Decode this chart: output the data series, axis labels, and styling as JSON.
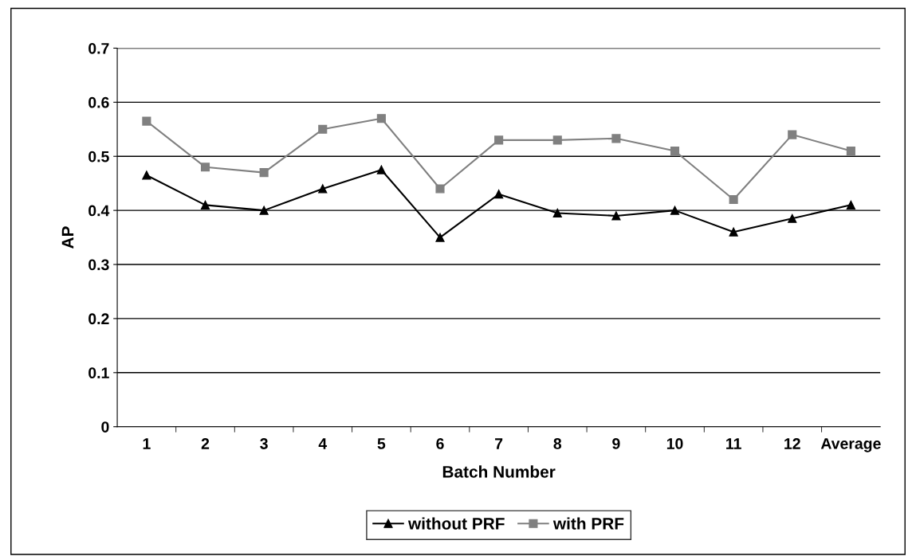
{
  "chart_data": {
    "type": "line",
    "xlabel": "Batch Number",
    "ylabel": "AP",
    "categories": [
      "1",
      "2",
      "3",
      "4",
      "5",
      "6",
      "7",
      "8",
      "9",
      "10",
      "11",
      "12",
      "Average"
    ],
    "series": [
      {
        "name": "without PRF",
        "color": "#000000",
        "marker": "triangle",
        "values": [
          0.465,
          0.41,
          0.4,
          0.44,
          0.475,
          0.35,
          0.43,
          0.395,
          0.39,
          0.4,
          0.36,
          0.385,
          0.41
        ]
      },
      {
        "name": "with PRF",
        "color": "#808080",
        "marker": "square",
        "values": [
          0.565,
          0.48,
          0.47,
          0.55,
          0.57,
          0.44,
          0.53,
          0.53,
          0.533,
          0.51,
          0.42,
          0.54,
          0.51
        ]
      }
    ],
    "ylim": [
      0,
      0.7
    ],
    "yticks": [
      0,
      0.1,
      0.2,
      0.3,
      0.4,
      0.5,
      0.6,
      0.7
    ],
    "grid": "y",
    "legend": "bottom",
    "line_style": "solid"
  }
}
